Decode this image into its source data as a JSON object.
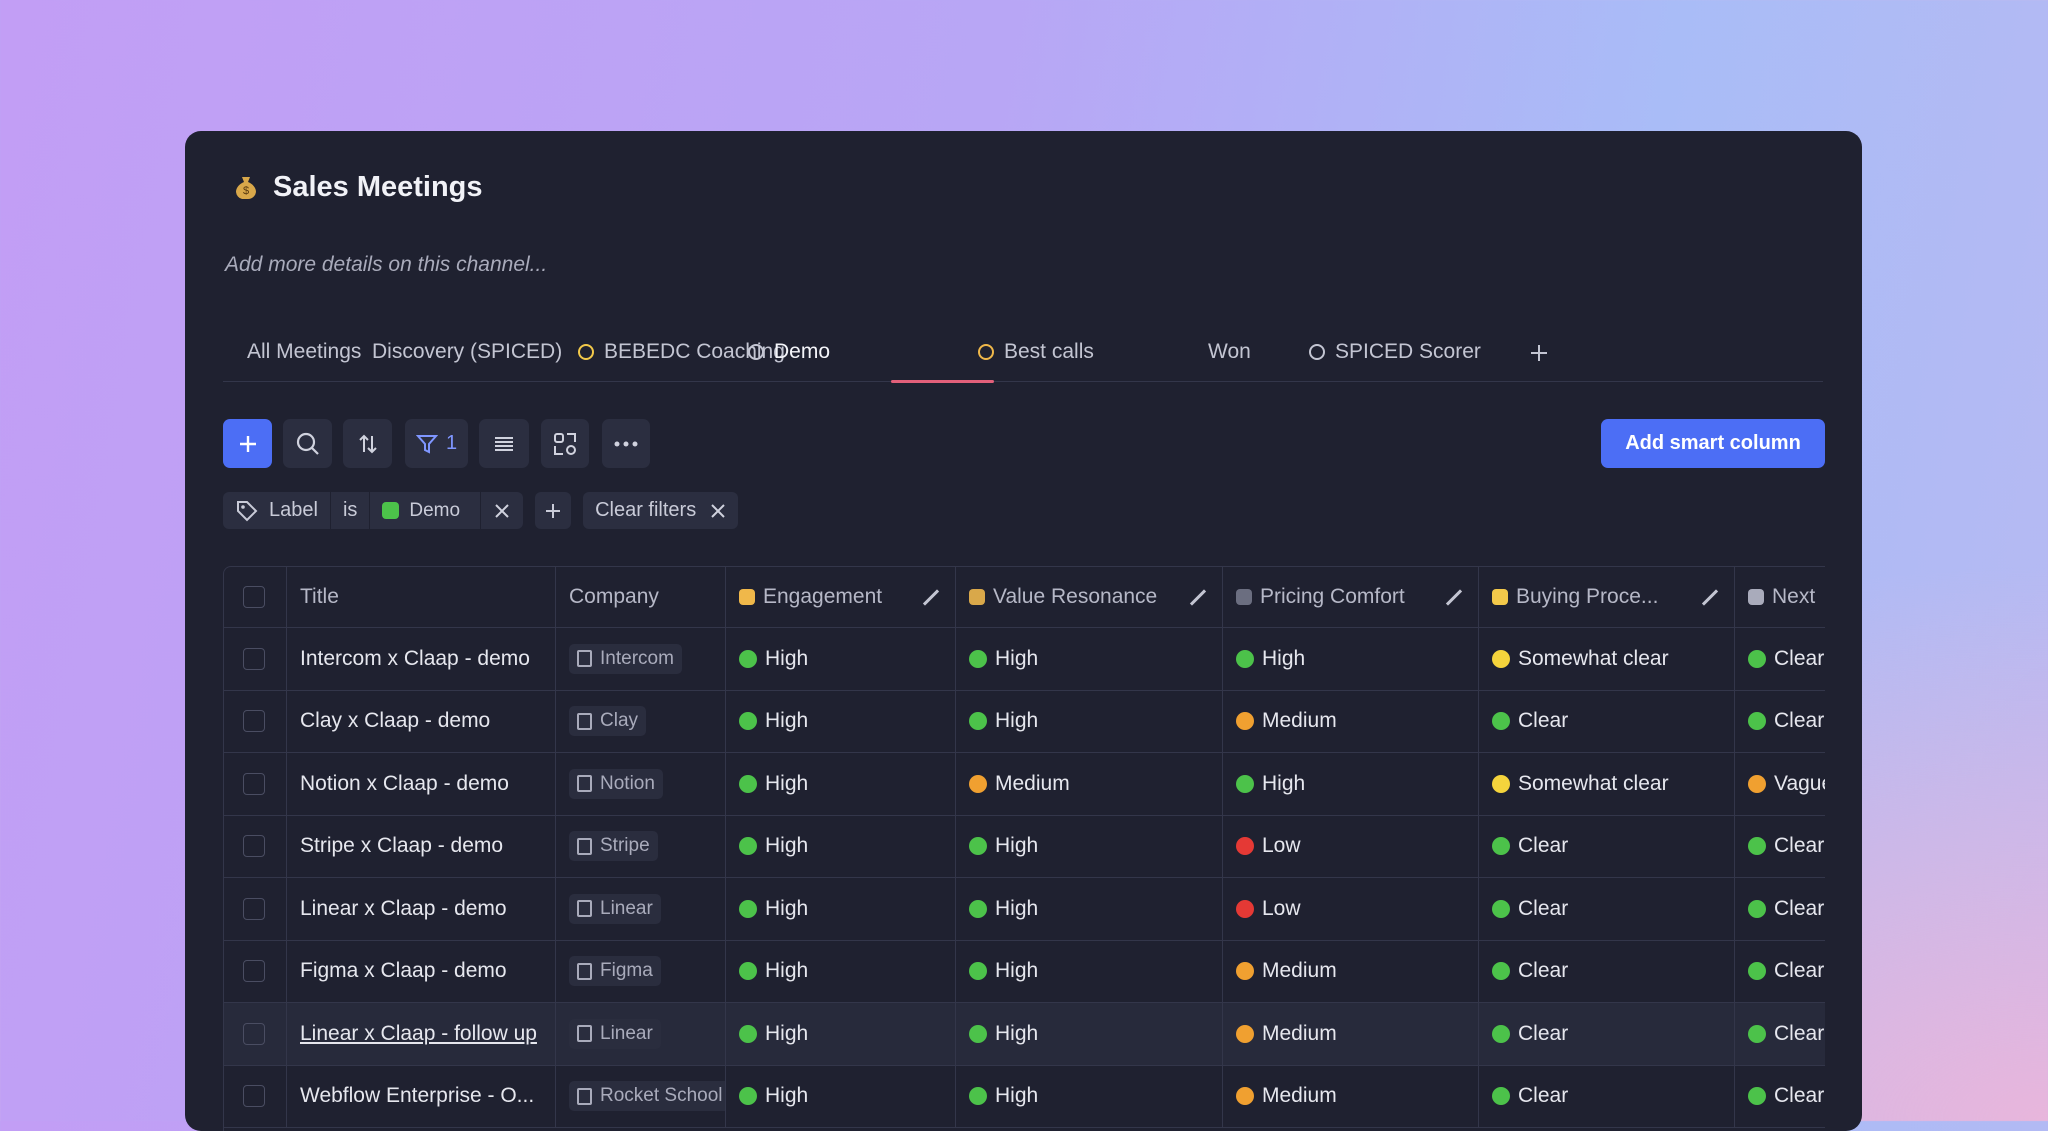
{
  "header": {
    "title": "Sales Meetings",
    "description": "Add more details on this channel..."
  },
  "tabs": [
    "All Meetings",
    "Discovery (SPICED)",
    "BEBEDC Coaching",
    "Demo",
    "Best calls",
    "Won",
    "SPICED Scorer"
  ],
  "toolbar": {
    "filter_count": 1,
    "add_smart_column": "Add smart column"
  },
  "filter": {
    "field": "Label",
    "operator": "is",
    "value": "Demo",
    "clear": "Clear filters"
  },
  "level_colors": {
    "High": "#4cc24a",
    "Clear": "#4cc24a",
    "Medium": "#f0a030",
    "Vague": "#f0a030",
    "Low": "#e53935",
    "Somewhat clear": "#f5d43c"
  },
  "table": {
    "columns": [
      "Title",
      "Company",
      "Engagement",
      "Value Resonance",
      "Pricing Comfort",
      "Buying Proce...",
      "Next"
    ],
    "rows": [
      [
        "Intercom x Claap - demo",
        "Intercom",
        "High",
        "High",
        "High",
        "Somewhat clear",
        "Clear"
      ],
      [
        "Clay x Claap - demo",
        "Clay",
        "High",
        "High",
        "Medium",
        "Clear",
        "Clear"
      ],
      [
        "Notion x Claap - demo",
        "Notion",
        "High",
        "Medium",
        "High",
        "Somewhat clear",
        "Vague"
      ],
      [
        "Stripe x Claap - demo",
        "Stripe",
        "High",
        "High",
        "Low",
        "Clear",
        "Clear"
      ],
      [
        "Linear x Claap - demo",
        "Linear",
        "High",
        "High",
        "Low",
        "Clear",
        "Clear"
      ],
      [
        "Figma x Claap - demo",
        "Figma",
        "High",
        "High",
        "Medium",
        "Clear",
        "Clear"
      ],
      [
        "Linear x Claap - follow up",
        "Linear",
        "High",
        "High",
        "Medium",
        "Clear",
        "Clear"
      ],
      [
        "Webflow Enterprise - O...",
        "Rocket School",
        "High",
        "High",
        "Medium",
        "Clear",
        "Clear"
      ]
    ]
  }
}
